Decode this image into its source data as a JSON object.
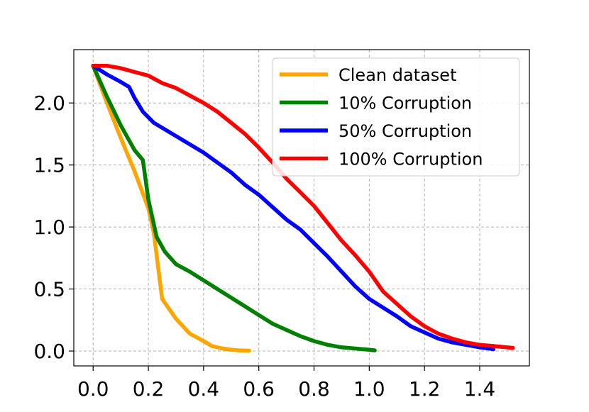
{
  "chart_data": {
    "type": "line",
    "title": "",
    "xlabel": "",
    "ylabel": "",
    "xlim": [
      -0.07,
      1.58
    ],
    "ylim": [
      -0.12,
      2.43
    ],
    "grid": true,
    "legend_placement": "top-right",
    "x_ticks": [
      0.0,
      0.2,
      0.4,
      0.6,
      0.8,
      1.0,
      1.2,
      1.4
    ],
    "x_tick_labels": [
      "0.0",
      "0.2",
      "0.4",
      "0.6",
      "0.8",
      "1.0",
      "1.2",
      "1.4"
    ],
    "y_ticks": [
      0.0,
      0.5,
      1.0,
      1.5,
      2.0
    ],
    "y_tick_labels": [
      "0.0",
      "0.5",
      "1.0",
      "1.5",
      "2.0"
    ],
    "series": [
      {
        "name": "Clean dataset",
        "color": "#FFA500",
        "points": [
          [
            0.0,
            2.3
          ],
          [
            0.05,
            2.0
          ],
          [
            0.1,
            1.72
          ],
          [
            0.15,
            1.45
          ],
          [
            0.2,
            1.15
          ],
          [
            0.22,
            0.95
          ],
          [
            0.25,
            0.42
          ],
          [
            0.3,
            0.26
          ],
          [
            0.35,
            0.14
          ],
          [
            0.4,
            0.08
          ],
          [
            0.43,
            0.04
          ],
          [
            0.47,
            0.02
          ],
          [
            0.5,
            0.01
          ],
          [
            0.53,
            0.005
          ],
          [
            0.565,
            0.003
          ]
        ]
      },
      {
        "name": "10% Corruption",
        "color": "#008000",
        "points": [
          [
            0.0,
            2.3
          ],
          [
            0.05,
            2.05
          ],
          [
            0.1,
            1.82
          ],
          [
            0.15,
            1.62
          ],
          [
            0.18,
            1.54
          ],
          [
            0.2,
            1.22
          ],
          [
            0.23,
            0.92
          ],
          [
            0.26,
            0.8
          ],
          [
            0.3,
            0.7
          ],
          [
            0.35,
            0.64
          ],
          [
            0.4,
            0.57
          ],
          [
            0.45,
            0.5
          ],
          [
            0.5,
            0.43
          ],
          [
            0.55,
            0.36
          ],
          [
            0.6,
            0.29
          ],
          [
            0.65,
            0.22
          ],
          [
            0.7,
            0.17
          ],
          [
            0.75,
            0.12
          ],
          [
            0.8,
            0.08
          ],
          [
            0.85,
            0.05
          ],
          [
            0.9,
            0.03
          ],
          [
            0.95,
            0.02
          ],
          [
            1.0,
            0.01
          ],
          [
            1.02,
            0.005
          ]
        ]
      },
      {
        "name": "50% Corruption",
        "color": "#0000FF",
        "points": [
          [
            0.0,
            2.3
          ],
          [
            0.05,
            2.23
          ],
          [
            0.1,
            2.17
          ],
          [
            0.13,
            2.13
          ],
          [
            0.15,
            2.04
          ],
          [
            0.18,
            1.93
          ],
          [
            0.22,
            1.84
          ],
          [
            0.28,
            1.76
          ],
          [
            0.34,
            1.68
          ],
          [
            0.4,
            1.6
          ],
          [
            0.45,
            1.52
          ],
          [
            0.5,
            1.44
          ],
          [
            0.55,
            1.34
          ],
          [
            0.6,
            1.26
          ],
          [
            0.65,
            1.16
          ],
          [
            0.7,
            1.06
          ],
          [
            0.75,
            0.98
          ],
          [
            0.8,
            0.87
          ],
          [
            0.85,
            0.76
          ],
          [
            0.9,
            0.64
          ],
          [
            0.95,
            0.52
          ],
          [
            1.0,
            0.42
          ],
          [
            1.05,
            0.35
          ],
          [
            1.1,
            0.28
          ],
          [
            1.15,
            0.2
          ],
          [
            1.2,
            0.15
          ],
          [
            1.25,
            0.1
          ],
          [
            1.3,
            0.07
          ],
          [
            1.35,
            0.05
          ],
          [
            1.4,
            0.03
          ],
          [
            1.45,
            0.015
          ]
        ]
      },
      {
        "name": "100% Corruption",
        "color": "#FF0000",
        "points": [
          [
            0.0,
            2.3
          ],
          [
            0.05,
            2.3
          ],
          [
            0.1,
            2.28
          ],
          [
            0.15,
            2.25
          ],
          [
            0.2,
            2.22
          ],
          [
            0.25,
            2.16
          ],
          [
            0.3,
            2.12
          ],
          [
            0.35,
            2.06
          ],
          [
            0.4,
            2.0
          ],
          [
            0.45,
            1.93
          ],
          [
            0.5,
            1.84
          ],
          [
            0.55,
            1.75
          ],
          [
            0.6,
            1.64
          ],
          [
            0.65,
            1.52
          ],
          [
            0.7,
            1.39
          ],
          [
            0.75,
            1.28
          ],
          [
            0.8,
            1.17
          ],
          [
            0.85,
            1.03
          ],
          [
            0.9,
            0.89
          ],
          [
            0.95,
            0.77
          ],
          [
            1.0,
            0.64
          ],
          [
            1.05,
            0.48
          ],
          [
            1.1,
            0.38
          ],
          [
            1.15,
            0.28
          ],
          [
            1.2,
            0.2
          ],
          [
            1.25,
            0.14
          ],
          [
            1.3,
            0.1
          ],
          [
            1.35,
            0.07
          ],
          [
            1.4,
            0.05
          ],
          [
            1.45,
            0.04
          ],
          [
            1.52,
            0.025
          ]
        ]
      }
    ]
  }
}
